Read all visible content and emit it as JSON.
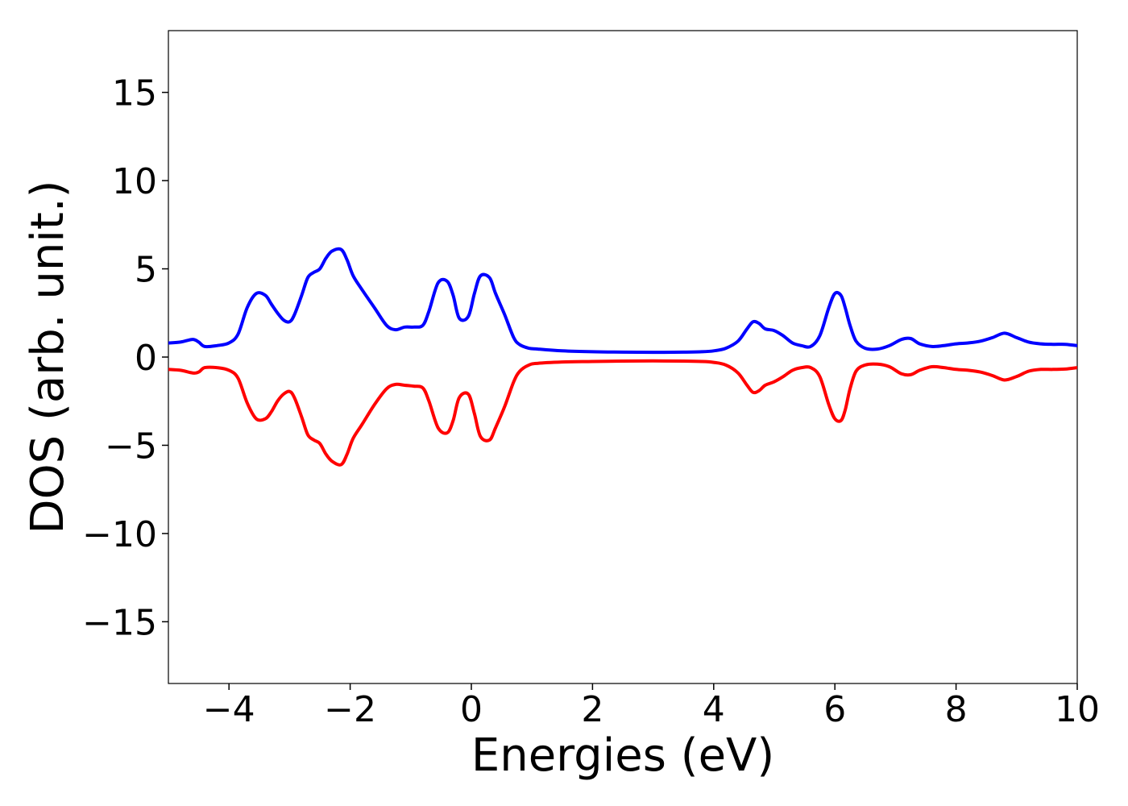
{
  "chart_data": {
    "type": "line",
    "title": "",
    "xlabel": "Energies (eV)",
    "ylabel": "DOS (arb. unit.)",
    "xlim": [
      -5,
      10
    ],
    "ylim": [
      -18.5,
      18.5
    ],
    "xticks": [
      -4,
      -2,
      0,
      2,
      4,
      6,
      8,
      10
    ],
    "xtick_labels": [
      "−4",
      "−2",
      "0",
      "2",
      "4",
      "6",
      "8",
      "10"
    ],
    "yticks": [
      -15,
      -10,
      -5,
      0,
      5,
      10,
      15
    ],
    "ytick_labels": [
      "−15",
      "−10",
      "−5",
      "0",
      "5",
      "10",
      "15"
    ],
    "grid": false,
    "legend": "none",
    "series": [
      {
        "color": "#0000ff",
        "x": [
          -5.0,
          -4.8,
          -4.6,
          -4.5,
          -4.4,
          -4.2,
          -4.0,
          -3.85,
          -3.7,
          -3.55,
          -3.4,
          -3.3,
          -3.2,
          -3.1,
          -3.0,
          -2.92,
          -2.8,
          -2.7,
          -2.6,
          -2.5,
          -2.4,
          -2.3,
          -2.15,
          -2.05,
          -1.95,
          -1.8,
          -1.6,
          -1.4,
          -1.25,
          -1.1,
          -0.95,
          -0.8,
          -0.7,
          -0.55,
          -0.4,
          -0.3,
          -0.2,
          -0.05,
          0.05,
          0.15,
          0.3,
          0.4,
          0.55,
          0.7,
          0.8,
          0.95,
          1.1,
          1.5,
          2.0,
          2.5,
          3.0,
          3.5,
          3.8,
          4.0,
          4.2,
          4.4,
          4.55,
          4.65,
          4.75,
          4.85,
          5.0,
          5.15,
          5.3,
          5.45,
          5.6,
          5.75,
          5.9,
          6.0,
          6.1,
          6.17,
          6.25,
          6.35,
          6.5,
          6.7,
          6.9,
          7.1,
          7.25,
          7.4,
          7.6,
          7.8,
          8.0,
          8.2,
          8.4,
          8.6,
          8.8,
          9.0,
          9.2,
          9.4,
          9.6,
          9.8,
          10.0
        ],
        "y": [
          0.8,
          0.85,
          1.0,
          0.85,
          0.6,
          0.65,
          0.8,
          1.3,
          2.8,
          3.6,
          3.5,
          3.0,
          2.5,
          2.1,
          2.0,
          2.4,
          3.5,
          4.5,
          4.8,
          5.0,
          5.6,
          6.0,
          6.1,
          5.5,
          4.6,
          3.8,
          2.8,
          1.8,
          1.55,
          1.7,
          1.7,
          1.8,
          2.6,
          4.2,
          4.3,
          3.5,
          2.2,
          2.3,
          3.6,
          4.6,
          4.5,
          3.6,
          2.4,
          1.1,
          0.7,
          0.5,
          0.45,
          0.35,
          0.3,
          0.28,
          0.27,
          0.28,
          0.3,
          0.35,
          0.5,
          0.9,
          1.6,
          2.0,
          1.9,
          1.6,
          1.5,
          1.2,
          0.8,
          0.65,
          0.6,
          1.2,
          2.8,
          3.6,
          3.5,
          2.8,
          1.8,
          0.9,
          0.5,
          0.45,
          0.65,
          1.0,
          1.05,
          0.75,
          0.6,
          0.65,
          0.75,
          0.8,
          0.9,
          1.1,
          1.35,
          1.1,
          0.85,
          0.75,
          0.72,
          0.72,
          0.65
        ]
      },
      {
        "color": "#ff0000",
        "x": [
          -5.0,
          -4.8,
          -4.6,
          -4.5,
          -4.4,
          -4.2,
          -4.0,
          -3.85,
          -3.7,
          -3.55,
          -3.4,
          -3.3,
          -3.2,
          -3.1,
          -3.0,
          -2.92,
          -2.8,
          -2.7,
          -2.6,
          -2.5,
          -2.4,
          -2.3,
          -2.15,
          -2.05,
          -1.95,
          -1.8,
          -1.6,
          -1.4,
          -1.25,
          -1.1,
          -0.95,
          -0.8,
          -0.7,
          -0.55,
          -0.4,
          -0.3,
          -0.2,
          -0.05,
          0.05,
          0.15,
          0.3,
          0.4,
          0.55,
          0.7,
          0.8,
          0.95,
          1.1,
          1.5,
          2.0,
          2.5,
          3.0,
          3.5,
          3.8,
          4.0,
          4.2,
          4.4,
          4.55,
          4.65,
          4.75,
          4.85,
          5.0,
          5.15,
          5.3,
          5.45,
          5.6,
          5.75,
          5.9,
          6.0,
          6.1,
          6.17,
          6.25,
          6.35,
          6.5,
          6.7,
          6.9,
          7.1,
          7.25,
          7.4,
          7.6,
          7.8,
          8.0,
          8.2,
          8.4,
          8.6,
          8.8,
          9.0,
          9.2,
          9.4,
          9.6,
          9.8,
          10.0
        ],
        "y": [
          -0.7,
          -0.75,
          -0.9,
          -0.85,
          -0.6,
          -0.6,
          -0.75,
          -1.2,
          -2.6,
          -3.5,
          -3.5,
          -3.1,
          -2.5,
          -2.1,
          -1.95,
          -2.3,
          -3.4,
          -4.4,
          -4.7,
          -4.9,
          -5.5,
          -5.9,
          -6.1,
          -5.5,
          -4.6,
          -3.8,
          -2.7,
          -1.8,
          -1.55,
          -1.6,
          -1.65,
          -1.75,
          -2.5,
          -4.0,
          -4.3,
          -3.6,
          -2.3,
          -2.1,
          -3.2,
          -4.5,
          -4.7,
          -4.0,
          -2.8,
          -1.4,
          -0.8,
          -0.45,
          -0.35,
          -0.28,
          -0.25,
          -0.23,
          -0.22,
          -0.23,
          -0.25,
          -0.3,
          -0.45,
          -0.9,
          -1.6,
          -2.0,
          -1.9,
          -1.6,
          -1.4,
          -1.1,
          -0.75,
          -0.6,
          -0.6,
          -1.1,
          -2.7,
          -3.5,
          -3.6,
          -3.0,
          -1.8,
          -0.8,
          -0.45,
          -0.4,
          -0.55,
          -0.95,
          -1.0,
          -0.75,
          -0.55,
          -0.6,
          -0.7,
          -0.75,
          -0.85,
          -1.05,
          -1.3,
          -1.1,
          -0.8,
          -0.7,
          -0.7,
          -0.68,
          -0.6
        ]
      }
    ]
  }
}
